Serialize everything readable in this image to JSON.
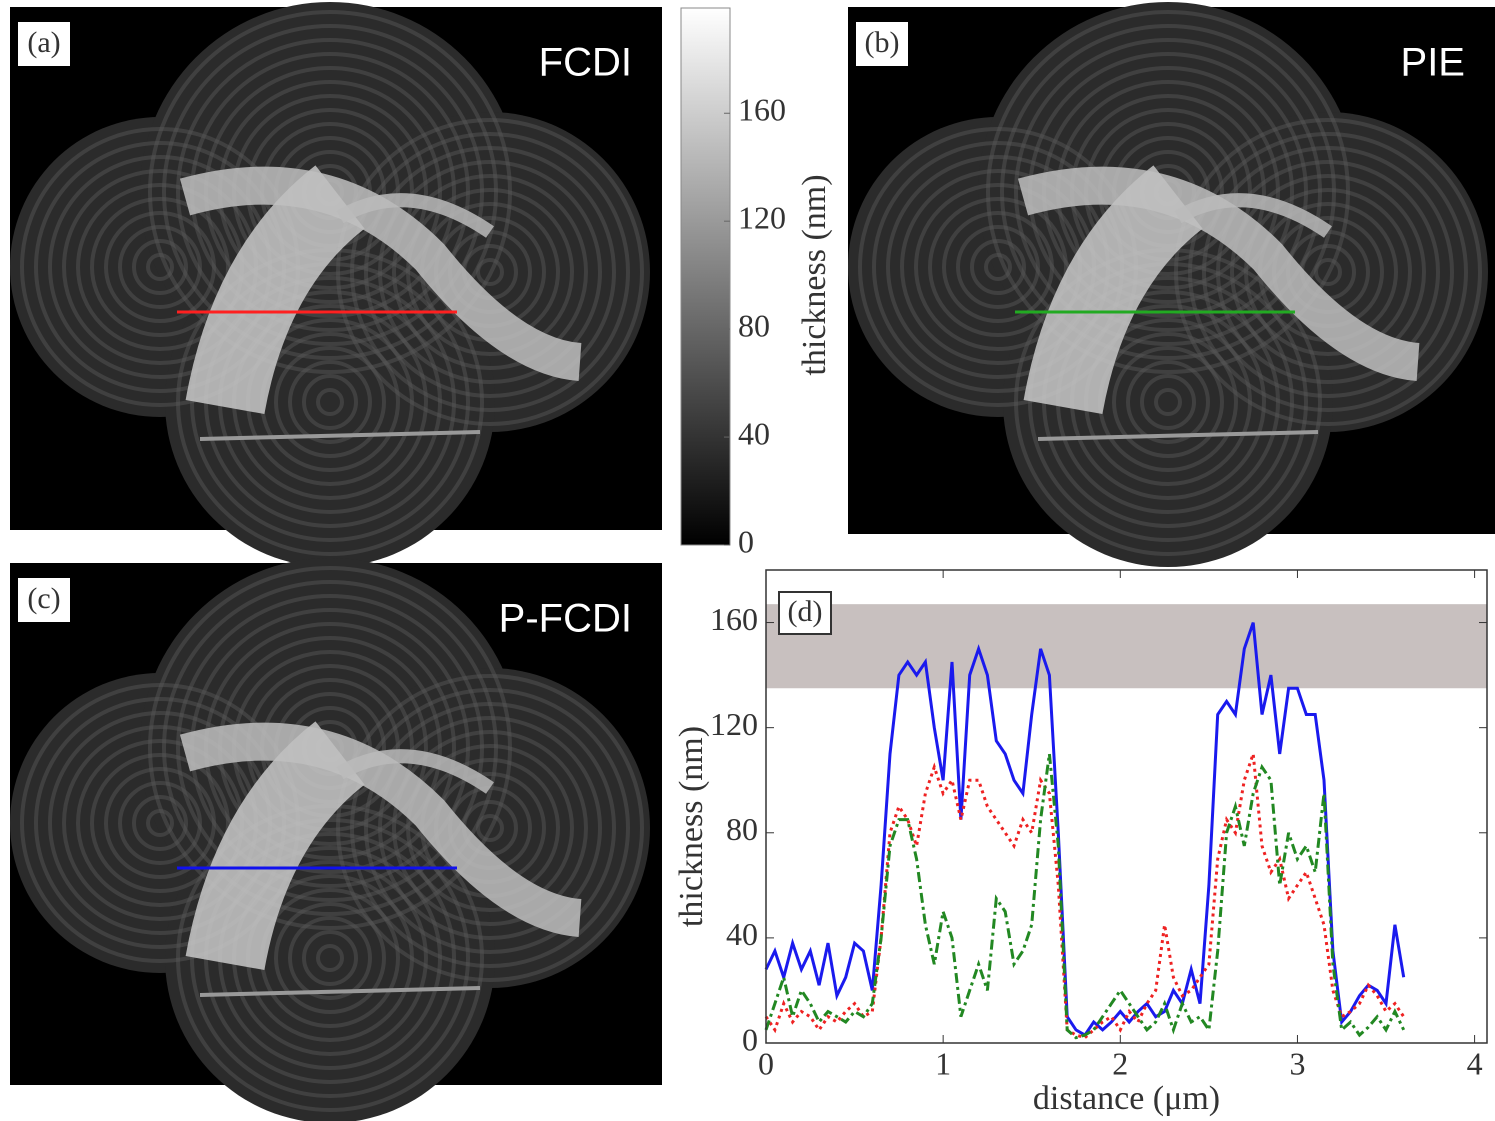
{
  "panels": [
    {
      "label": "(a)",
      "title": "FCDI",
      "line_color": "#ff2020"
    },
    {
      "label": "(b)",
      "title": "PIE",
      "line_color": "#22aa22"
    },
    {
      "label": "(c)",
      "title": "P-FCDI",
      "line_color": "#1010ee"
    }
  ],
  "colorbar": {
    "label": "thickness (nm)",
    "lim": [
      0,
      199
    ],
    "ticks": [
      0,
      40,
      80,
      120,
      160
    ]
  },
  "chart_data": {
    "type": "line",
    "annotation": "(d)",
    "x_label": "distance (μm)",
    "y_label": "thickness (nm)",
    "xlim": [
      0,
      4.07
    ],
    "ylim": [
      0,
      180
    ],
    "xticks": [
      0,
      1,
      2,
      3,
      4
    ],
    "yticks": [
      0,
      40,
      80,
      120,
      160
    ],
    "band": {
      "range": [
        135,
        167
      ],
      "color": "#c8c0bf"
    },
    "x": [
      0,
      0.05,
      0.1,
      0.15,
      0.2,
      0.25,
      0.3,
      0.35,
      0.4,
      0.45,
      0.5,
      0.55,
      0.6,
      0.65,
      0.7,
      0.75,
      0.8,
      0.85,
      0.9,
      0.95,
      1,
      1.05,
      1.1,
      1.15,
      1.2,
      1.25,
      1.3,
      1.35,
      1.4,
      1.45,
      1.5,
      1.55,
      1.6,
      1.65,
      1.7,
      1.75,
      1.8,
      1.85,
      1.9,
      1.95,
      2,
      2.05,
      2.1,
      2.15,
      2.2,
      2.25,
      2.3,
      2.35,
      2.4,
      2.45,
      2.5,
      2.55,
      2.6,
      2.65,
      2.7,
      2.75,
      2.8,
      2.85,
      2.9,
      2.95,
      3,
      3.05,
      3.1,
      3.15,
      3.2,
      3.25,
      3.3,
      3.35,
      3.4,
      3.45,
      3.5,
      3.55,
      3.6
    ],
    "series": [
      {
        "color": "#1a1aee",
        "style": "solid",
        "values": [
          28,
          35,
          25,
          38,
          28,
          35,
          22,
          38,
          18,
          25,
          38,
          35,
          20,
          60,
          110,
          140,
          145,
          140,
          145,
          120,
          100,
          145,
          85,
          140,
          150,
          140,
          115,
          110,
          100,
          95,
          125,
          150,
          140,
          80,
          10,
          5,
          3,
          8,
          5,
          8,
          12,
          8,
          12,
          15,
          10,
          12,
          20,
          15,
          28,
          15,
          60,
          125,
          130,
          125,
          150,
          160,
          125,
          140,
          110,
          135,
          135,
          125,
          125,
          100,
          35,
          8,
          12,
          18,
          22,
          20,
          15,
          45,
          25
        ]
      },
      {
        "color": "#ee2222",
        "style": "dotted",
        "values": [
          10,
          5,
          15,
          8,
          12,
          10,
          5,
          10,
          8,
          12,
          15,
          10,
          12,
          40,
          80,
          90,
          85,
          75,
          95,
          105,
          95,
          100,
          85,
          100,
          100,
          90,
          85,
          80,
          75,
          85,
          80,
          100,
          95,
          60,
          5,
          3,
          2,
          5,
          8,
          10,
          5,
          12,
          8,
          15,
          20,
          45,
          25,
          18,
          20,
          25,
          30,
          70,
          85,
          80,
          100,
          110,
          75,
          65,
          70,
          55,
          60,
          65,
          55,
          45,
          20,
          10,
          12,
          15,
          22,
          18,
          12,
          15,
          10
        ]
      },
      {
        "color": "#228822",
        "style": "dashdot",
        "values": [
          5,
          15,
          25,
          10,
          20,
          15,
          8,
          12,
          10,
          8,
          12,
          10,
          15,
          40,
          75,
          85,
          85,
          70,
          45,
          30,
          50,
          40,
          10,
          20,
          30,
          20,
          55,
          50,
          30,
          35,
          45,
          85,
          110,
          75,
          5,
          2,
          3,
          5,
          10,
          15,
          20,
          15,
          10,
          5,
          8,
          15,
          5,
          15,
          8,
          10,
          5,
          35,
          80,
          90,
          75,
          95,
          105,
          100,
          60,
          80,
          70,
          75,
          65,
          95,
          30,
          5,
          8,
          3,
          6,
          10,
          5,
          12,
          5
        ]
      }
    ]
  }
}
